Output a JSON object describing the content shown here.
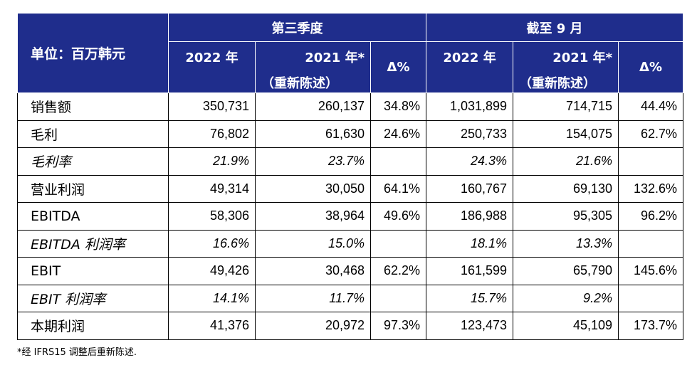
{
  "header": {
    "unit": "单位：百万韩元",
    "group_quarter": "第三季度",
    "group_ytd": "截至 9 月",
    "col_2022": "2022 年",
    "col_2021": "2021 年*",
    "col_2021_sub": "（重新陈述）",
    "col_delta": "Δ%"
  },
  "rows": [
    {
      "label": "销售额",
      "italic": false,
      "values": [
        "350,731",
        "260,137",
        "34.8%",
        "1,031,899",
        "714,715",
        "44.4%"
      ]
    },
    {
      "label": "毛利",
      "italic": false,
      "values": [
        "76,802",
        "61,630",
        "24.6%",
        "250,733",
        "154,075",
        "62.7%"
      ]
    },
    {
      "label": "毛利率",
      "italic": true,
      "values": [
        "21.9%",
        "23.7%",
        "",
        "24.3%",
        "21.6%",
        ""
      ]
    },
    {
      "label": "营业利润",
      "italic": false,
      "values": [
        "49,314",
        "30,050",
        "64.1%",
        "160,767",
        "69,130",
        "132.6%"
      ]
    },
    {
      "label": "EBITDA",
      "italic": false,
      "values": [
        "58,306",
        "38,964",
        "49.6%",
        "186,988",
        "95,305",
        "96.2%"
      ]
    },
    {
      "label": "EBITDA 利润率",
      "italic": true,
      "values": [
        "16.6%",
        "15.0%",
        "",
        "18.1%",
        "13.3%",
        ""
      ]
    },
    {
      "label": "EBIT",
      "italic": false,
      "values": [
        "49,426",
        "30,468",
        "62.2%",
        "161,599",
        "65,790",
        "145.6%"
      ]
    },
    {
      "label": "EBIT 利润率",
      "italic": true,
      "values": [
        "14.1%",
        "11.7%",
        "",
        "15.7%",
        "9.2%",
        ""
      ]
    },
    {
      "label": "本期利润",
      "italic": false,
      "values": [
        "41,376",
        "20,972",
        "97.3%",
        "123,473",
        "45,109",
        "173.7%"
      ]
    }
  ],
  "footnote": "*经 IFRS15 调整后重新陈述."
}
